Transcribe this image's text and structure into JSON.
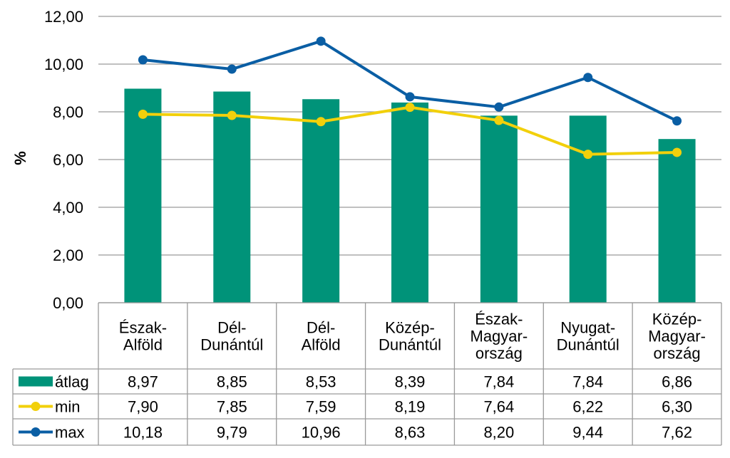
{
  "chart_data": {
    "type": "bar",
    "ylabel": "%",
    "ylim": [
      0,
      12
    ],
    "yticks": [
      "0,00",
      "2,00",
      "4,00",
      "6,00",
      "8,00",
      "10,00",
      "12,00"
    ],
    "ytick_values": [
      0,
      2,
      4,
      6,
      8,
      10,
      12
    ],
    "grid": true,
    "categories": [
      [
        "Észak-",
        "Alföld"
      ],
      [
        "Dél-",
        "Dunántúl"
      ],
      [
        "Dél-",
        "Alföld"
      ],
      [
        "Közép-",
        "Dunántúl"
      ],
      [
        "Észak-",
        "Magyar-",
        "ország"
      ],
      [
        "Nyugat-",
        "Dunántúl"
      ],
      [
        "Közép-",
        "Magyar-",
        "ország"
      ]
    ],
    "series": [
      {
        "name": "átlag",
        "kind": "bar",
        "color": "#009379",
        "values": [
          8.97,
          8.85,
          8.53,
          8.39,
          7.84,
          7.84,
          6.86
        ],
        "labels": [
          "8,97",
          "8,85",
          "8,53",
          "8,39",
          "7,84",
          "7,84",
          "6,86"
        ]
      },
      {
        "name": "min",
        "kind": "line",
        "color": "#F2D00B",
        "values": [
          7.9,
          7.85,
          7.59,
          8.19,
          7.64,
          6.22,
          6.3
        ],
        "labels": [
          "7,90",
          "7,85",
          "7,59",
          "8,19",
          "7,64",
          "6,22",
          "6,30"
        ]
      },
      {
        "name": "max",
        "kind": "line",
        "color": "#0A5EA4",
        "values": [
          10.18,
          9.79,
          10.96,
          8.63,
          8.2,
          9.44,
          7.62
        ],
        "labels": [
          "10,18",
          "9,79",
          "10,96",
          "8,63",
          "8,20",
          "9,44",
          "7,62"
        ]
      }
    ]
  }
}
